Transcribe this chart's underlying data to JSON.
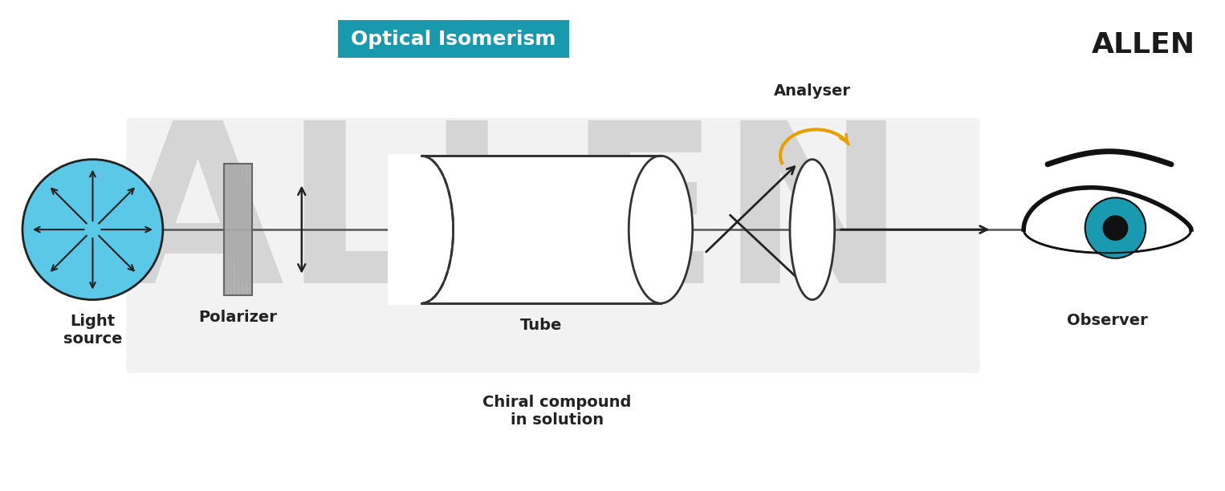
{
  "title": "Optical Isomerism",
  "title_bg_color": "#1899ae",
  "title_text_color": "#ffffff",
  "allen_text": "ALLEN",
  "allen_color": "#1a1a1a",
  "bg_color": "#ffffff",
  "gray_panel_color": "#e8e8e8",
  "light_source_label": "Light\nsource",
  "polarizer_label": "Polarizer",
  "tube_label": "Tube",
  "chiral_label": "Chiral compound\nin solution",
  "analyser_label": "Analyser",
  "observer_label": "Observer",
  "light_circle_fill": "#5bc8e8",
  "light_circle_edge": "#222222",
  "tube_edge": "#333333",
  "arrow_color": "#222222",
  "arc_arrow_color": "#e8a000",
  "polarizer_lines_color": "#aaaaaa",
  "axis_line_color": "#555555",
  "eye_iris_color": "#1a9ab0",
  "label_fontsize": 14,
  "title_fontsize": 18,
  "allen_fontsize": 26,
  "watermark_fontsize": 200
}
